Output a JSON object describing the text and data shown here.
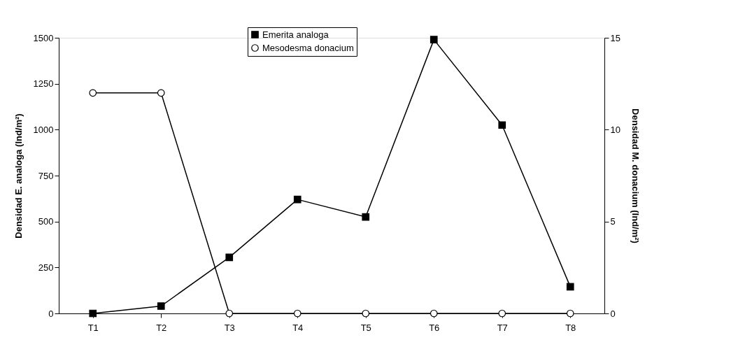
{
  "chart_data": {
    "type": "line",
    "ylabel": "Densidad E. analoga (Ind/m²)",
    "y2label": "Densidad M. donacium (Ind/m²)",
    "categories": [
      "T1",
      "T2",
      "T3",
      "T4",
      "T5",
      "T6",
      "T7",
      "T8"
    ],
    "series": [
      {
        "name": "Emerita analoga",
        "color": "#000000",
        "marker": "square",
        "values": [
          0,
          40,
          305,
          620,
          525,
          1490,
          1025,
          145
        ]
      },
      {
        "name": "Mesodesma donacium",
        "color": "#000000",
        "marker": "circle",
        "axis": "y2",
        "values": [
          12,
          12,
          0,
          0,
          0,
          0,
          0,
          0
        ]
      }
    ],
    "ylim": [
      0,
      1500
    ],
    "yticks": [
      0,
      250,
      500,
      750,
      1000,
      1250,
      1500
    ],
    "y2lim": [
      0,
      15
    ],
    "y2ticks": [
      0,
      5,
      10,
      15
    ],
    "legend": "top",
    "grid": false
  }
}
